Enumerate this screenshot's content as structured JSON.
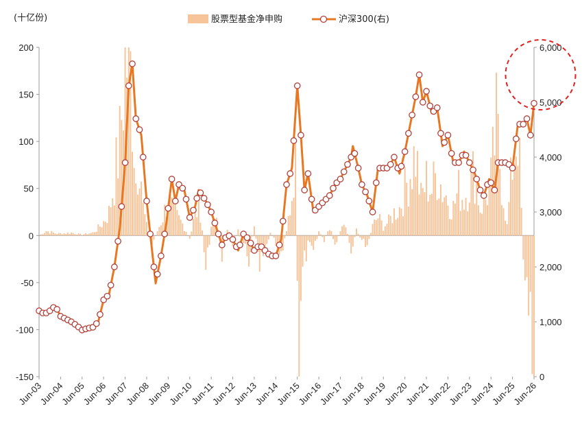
{
  "chart_data": {
    "type": "bar+line",
    "unit_label": "(十亿份)",
    "legend_position": "top-center",
    "x_tick_labels": [
      "Jun-03",
      "Jun-04",
      "Jun-05",
      "Jun-06",
      "Jun-07",
      "Jun-08",
      "Jun-09",
      "Jun-10",
      "Jun-11",
      "Jun-12",
      "Jun-13",
      "Jun-14",
      "Jun-15",
      "Jun-16",
      "Jun-17",
      "Jun-18",
      "Jun-19",
      "Jun-20",
      "Jun-21",
      "Jun-22",
      "Jun-23",
      "Jun-24",
      "Jun-25",
      "Jun-26"
    ],
    "x_range": [
      "2003-06",
      "2026-06"
    ],
    "y_left": {
      "range": [
        -150,
        200
      ],
      "ticks": [
        "-150",
        "-100",
        "-50",
        "0",
        "50",
        "100",
        "150",
        "200"
      ],
      "tick_values": [
        -150,
        -100,
        -50,
        0,
        50,
        100,
        150,
        200
      ]
    },
    "y_right": {
      "range": [
        0,
        6000
      ],
      "ticks": [
        "0",
        "1,000",
        "2,000",
        "3,000",
        "4,000",
        "5,000",
        "6,000"
      ],
      "tick_values": [
        0,
        1000,
        2000,
        3000,
        4000,
        5000,
        6000
      ]
    },
    "series": [
      {
        "name": "股票型基金净申购",
        "kind": "bar",
        "axis": "left",
        "color": "#F7C49A",
        "anchors": [
          [
            "2003-06",
            0
          ],
          [
            "2003-10",
            5
          ],
          [
            "2004-04",
            2
          ],
          [
            "2004-12",
            3
          ],
          [
            "2005-06",
            1
          ],
          [
            "2005-12",
            3
          ],
          [
            "2006-03",
            8
          ],
          [
            "2006-06",
            15
          ],
          [
            "2006-09",
            25
          ],
          [
            "2006-12",
            60
          ],
          [
            "2007-03",
            100
          ],
          [
            "2007-06",
            190
          ],
          [
            "2007-08",
            195
          ],
          [
            "2007-10",
            150
          ],
          [
            "2007-12",
            60
          ],
          [
            "2008-02",
            100
          ],
          [
            "2008-04",
            30
          ],
          [
            "2008-06",
            10
          ],
          [
            "2008-09",
            -10
          ],
          [
            "2008-12",
            5
          ],
          [
            "2009-03",
            20
          ],
          [
            "2009-06",
            40
          ],
          [
            "2009-08",
            30
          ],
          [
            "2009-11",
            20
          ],
          [
            "2010-03",
            10
          ],
          [
            "2010-06",
            -5
          ],
          [
            "2010-09",
            25
          ],
          [
            "2010-12",
            30
          ],
          [
            "2011-03",
            -40
          ],
          [
            "2011-06",
            10
          ],
          [
            "2011-09",
            20
          ],
          [
            "2011-12",
            -20
          ],
          [
            "2012-03",
            10
          ],
          [
            "2012-06",
            -10
          ],
          [
            "2012-09",
            5
          ],
          [
            "2012-12",
            -15
          ],
          [
            "2013-03",
            -25
          ],
          [
            "2013-06",
            10
          ],
          [
            "2013-09",
            -40
          ],
          [
            "2013-12",
            -20
          ],
          [
            "2014-03",
            5
          ],
          [
            "2014-06",
            -10
          ],
          [
            "2014-09",
            -30
          ],
          [
            "2014-12",
            10
          ],
          [
            "2015-03",
            30
          ],
          [
            "2015-05",
            70
          ],
          [
            "2015-07",
            -150
          ],
          [
            "2015-09",
            -40
          ],
          [
            "2015-12",
            -10
          ],
          [
            "2016-03",
            -20
          ],
          [
            "2016-06",
            5
          ],
          [
            "2016-09",
            -5
          ],
          [
            "2016-12",
            10
          ],
          [
            "2017-03",
            -10
          ],
          [
            "2017-06",
            5
          ],
          [
            "2017-09",
            10
          ],
          [
            "2017-12",
            -15
          ],
          [
            "2018-03",
            5
          ],
          [
            "2018-06",
            -5
          ],
          [
            "2018-09",
            -10
          ],
          [
            "2018-12",
            10
          ],
          [
            "2019-03",
            20
          ],
          [
            "2019-06",
            10
          ],
          [
            "2019-09",
            15
          ],
          [
            "2019-12",
            25
          ],
          [
            "2020-03",
            30
          ],
          [
            "2020-06",
            50
          ],
          [
            "2020-09",
            70
          ],
          [
            "2020-12",
            90
          ],
          [
            "2021-03",
            40
          ],
          [
            "2021-06",
            60
          ],
          [
            "2021-09",
            50
          ],
          [
            "2021-12",
            70
          ],
          [
            "2022-03",
            50
          ],
          [
            "2022-06",
            40
          ],
          [
            "2022-09",
            30
          ],
          [
            "2022-12",
            50
          ],
          [
            "2023-03",
            40
          ],
          [
            "2023-06",
            60
          ],
          [
            "2023-09",
            70
          ],
          [
            "2023-12",
            30
          ],
          [
            "2024-03",
            40
          ],
          [
            "2024-06",
            60
          ],
          [
            "2024-09",
            120
          ],
          [
            "2024-12",
            60
          ],
          [
            "2025-03",
            10
          ],
          [
            "2025-06",
            80
          ],
          [
            "2025-09",
            120
          ],
          [
            "2025-12",
            -20
          ],
          [
            "2026-03",
            -80
          ],
          [
            "2026-06",
            -145
          ]
        ]
      },
      {
        "name": "沪深300(右)",
        "kind": "line",
        "axis": "right",
        "color": "#E87722",
        "marker_color": "#B0403A",
        "anchors": [
          [
            "2003-06",
            1200
          ],
          [
            "2003-09",
            1140
          ],
          [
            "2003-12",
            1200
          ],
          [
            "2004-03",
            1290
          ],
          [
            "2004-06",
            1100
          ],
          [
            "2004-09",
            1050
          ],
          [
            "2004-12",
            1000
          ],
          [
            "2005-03",
            930
          ],
          [
            "2005-06",
            850
          ],
          [
            "2005-09",
            880
          ],
          [
            "2005-12",
            900
          ],
          [
            "2006-03",
            1000
          ],
          [
            "2006-06",
            1400
          ],
          [
            "2006-09",
            1500
          ],
          [
            "2006-12",
            2000
          ],
          [
            "2007-03",
            2700
          ],
          [
            "2007-06",
            3900
          ],
          [
            "2007-08",
            5300
          ],
          [
            "2007-10",
            5700
          ],
          [
            "2007-12",
            4700
          ],
          [
            "2008-03",
            4400
          ],
          [
            "2008-06",
            3200
          ],
          [
            "2008-09",
            2300
          ],
          [
            "2008-11",
            1700
          ],
          [
            "2009-02",
            2200
          ],
          [
            "2009-05",
            2800
          ],
          [
            "2009-08",
            3600
          ],
          [
            "2009-10",
            3200
          ],
          [
            "2009-12",
            3500
          ],
          [
            "2010-03",
            3400
          ],
          [
            "2010-06",
            2900
          ],
          [
            "2010-09",
            3100
          ],
          [
            "2010-11",
            3400
          ],
          [
            "2011-03",
            3200
          ],
          [
            "2011-06",
            3000
          ],
          [
            "2011-09",
            2700
          ],
          [
            "2011-12",
            2400
          ],
          [
            "2012-03",
            2600
          ],
          [
            "2012-06",
            2500
          ],
          [
            "2012-09",
            2300
          ],
          [
            "2012-12",
            2600
          ],
          [
            "2013-03",
            2500
          ],
          [
            "2013-06",
            2300
          ],
          [
            "2013-09",
            2400
          ],
          [
            "2013-12",
            2300
          ],
          [
            "2014-03",
            2200
          ],
          [
            "2014-06",
            2200
          ],
          [
            "2014-09",
            2500
          ],
          [
            "2014-12",
            3500
          ],
          [
            "2015-03",
            3800
          ],
          [
            "2015-06",
            5300
          ],
          [
            "2015-08",
            4400
          ],
          [
            "2015-10",
            3400
          ],
          [
            "2015-12",
            3700
          ],
          [
            "2016-03",
            3000
          ],
          [
            "2016-06",
            3100
          ],
          [
            "2016-09",
            3200
          ],
          [
            "2016-12",
            3300
          ],
          [
            "2017-03",
            3500
          ],
          [
            "2017-06",
            3600
          ],
          [
            "2017-09",
            3800
          ],
          [
            "2017-12",
            4000
          ],
          [
            "2018-01",
            4200
          ],
          [
            "2018-04",
            3800
          ],
          [
            "2018-06",
            3500
          ],
          [
            "2018-09",
            3300
          ],
          [
            "2018-12",
            3000
          ],
          [
            "2019-03",
            3800
          ],
          [
            "2019-06",
            3800
          ],
          [
            "2019-09",
            3800
          ],
          [
            "2019-12",
            4000
          ],
          [
            "2020-03",
            3700
          ],
          [
            "2020-06",
            4100
          ],
          [
            "2020-09",
            4600
          ],
          [
            "2020-12",
            5100
          ],
          [
            "2021-02",
            5500
          ],
          [
            "2021-04",
            5000
          ],
          [
            "2021-06",
            5200
          ],
          [
            "2021-09",
            4800
          ],
          [
            "2021-12",
            4900
          ],
          [
            "2022-03",
            4200
          ],
          [
            "2022-06",
            4400
          ],
          [
            "2022-09",
            3900
          ],
          [
            "2022-12",
            3900
          ],
          [
            "2023-03",
            4100
          ],
          [
            "2023-06",
            3900
          ],
          [
            "2023-09",
            3700
          ],
          [
            "2023-12",
            3400
          ],
          [
            "2024-02",
            3300
          ],
          [
            "2024-05",
            3600
          ],
          [
            "2024-08",
            3400
          ],
          [
            "2024-10",
            3900
          ],
          [
            "2024-12",
            3900
          ],
          [
            "2025-03",
            3900
          ],
          [
            "2025-06",
            3800
          ],
          [
            "2025-09",
            4600
          ],
          [
            "2025-12",
            4600
          ],
          [
            "2026-02",
            4700
          ],
          [
            "2026-04",
            4400
          ],
          [
            "2026-06",
            4980
          ]
        ]
      }
    ],
    "annotations": [
      {
        "kind": "dashed-circle",
        "color": "#E02020",
        "x": "2026-02",
        "y_right": 5500
      }
    ]
  }
}
